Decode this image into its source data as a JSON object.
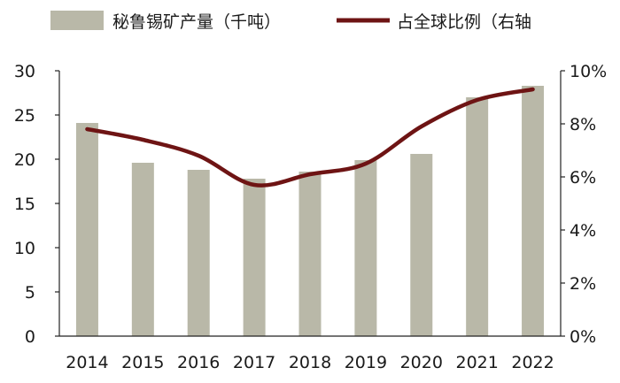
{
  "chart_data": {
    "type": "bar",
    "categories": [
      "2014",
      "2015",
      "2016",
      "2017",
      "2018",
      "2019",
      "2020",
      "2021",
      "2022"
    ],
    "series": [
      {
        "name": "秘鲁锡矿产量（千吨）",
        "type": "bar",
        "axis": "left",
        "color": "#b9b8a8",
        "values": [
          24.1,
          19.6,
          18.8,
          17.8,
          18.6,
          19.9,
          20.6,
          27.0,
          28.3
        ]
      },
      {
        "name": "占全球比例（右轴",
        "type": "line",
        "axis": "right",
        "color": "#6e1414",
        "values": [
          7.8,
          7.4,
          6.8,
          5.7,
          6.1,
          6.5,
          7.9,
          8.9,
          9.3
        ],
        "unit": "%"
      }
    ],
    "y_left": {
      "ylim": [
        0,
        30
      ],
      "ticks": [
        0,
        5,
        10,
        15,
        20,
        25,
        30
      ],
      "tick_labels": [
        "0",
        "5",
        "10",
        "15",
        "20",
        "25",
        "30"
      ]
    },
    "y_right": {
      "ylim": [
        0,
        10
      ],
      "ticks": [
        0,
        2,
        4,
        6,
        8,
        10
      ],
      "tick_labels": [
        "0%",
        "2%",
        "4%",
        "6%",
        "8%",
        "10%"
      ]
    },
    "grid": false,
    "legend_position": "top"
  }
}
